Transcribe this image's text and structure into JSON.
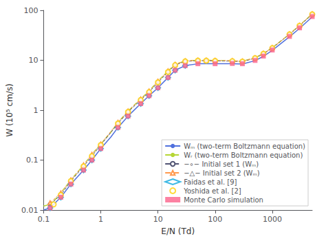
{
  "chart_data": {
    "type": "line",
    "xlabel": "E/N (Td)",
    "ylabel": "W (10⁵ cm/s)",
    "log": true,
    "grid": false,
    "legend": "lower right",
    "xlim": [
      0.1,
      5000
    ],
    "ylim": [
      0.01,
      100
    ],
    "xticks": [
      0.1,
      1,
      10,
      100,
      1000
    ],
    "yticks": [
      0.01,
      0.1,
      1,
      10,
      100
    ],
    "series": [
      {
        "name": "Wₘ (two-term Boltzmann equation)",
        "type": "line",
        "line_style": "solid",
        "x": [
          0.1,
          0.13,
          0.15,
          0.2,
          0.3,
          0.5,
          0.7,
          1.0,
          1.5,
          2.0,
          3.0,
          5.0,
          7.0,
          10.0,
          15.0,
          20.0,
          30.0,
          50.0,
          70.0,
          100.0,
          150.0,
          200.0,
          300.0,
          500.0,
          700.0,
          1000.0,
          2000.0,
          3000.0,
          5000.0
        ],
        "values": [
          0.01,
          0.011,
          0.013,
          0.018,
          0.033,
          0.063,
          0.1,
          0.17,
          0.29,
          0.45,
          0.76,
          1.35,
          1.95,
          2.8,
          4.5,
          6.3,
          7.8,
          8.5,
          8.55,
          8.5,
          8.5,
          8.5,
          8.4,
          9.8,
          12.0,
          15.8,
          29.5,
          43.5,
          74.0
        ]
      },
      {
        "name": "Wᵣ (two-term Boltzmann equation)",
        "type": "line",
        "line_style": "dashed",
        "x": [
          0.1,
          0.13,
          0.15,
          0.2,
          0.3,
          0.5,
          0.7,
          1.0,
          1.5,
          2.0,
          3.0,
          5.0,
          7.0,
          10.0,
          15.0,
          20.0,
          30.0,
          50.0,
          70.0,
          100.0,
          150.0,
          200.0,
          300.0,
          500.0,
          700.0,
          1000.0,
          2000.0,
          3000.0,
          5000.0
        ],
        "values": [
          0.012,
          0.013,
          0.015,
          0.022,
          0.04,
          0.08,
          0.13,
          0.21,
          0.36,
          0.57,
          0.96,
          1.68,
          2.42,
          3.8,
          6.1,
          8.3,
          9.7,
          10.0,
          10.0,
          9.9,
          9.8,
          9.7,
          9.6,
          11.2,
          13.7,
          17.8,
          33.5,
          50.0,
          85.0
        ]
      },
      {
        "name": "−∘− Initial set 1 (Wₘ)",
        "type": "line",
        "line_style": "dashed",
        "marker": "circle",
        "x": [
          0.13,
          0.2,
          0.3,
          0.5,
          0.7,
          1.0,
          2.0,
          3.0,
          5.0,
          7.0,
          10.0,
          15.0,
          20.0,
          30.0,
          50.0,
          70.0,
          100.0,
          200.0,
          300.0,
          500.0,
          700.0,
          1000.0,
          2000.0,
          3000.0,
          5000.0
        ],
        "values": [
          0.013,
          0.02,
          0.038,
          0.075,
          0.12,
          0.2,
          0.54,
          0.92,
          1.6,
          2.3,
          3.6,
          5.8,
          8.0,
          9.5,
          9.8,
          9.8,
          9.7,
          9.6,
          9.4,
          11.0,
          13.5,
          17.5,
          33.0,
          49.0,
          83.0
        ]
      },
      {
        "name": "−△− Initial set 2 (Wₘ)",
        "type": "line",
        "line_style": "dashed",
        "marker": "triangle",
        "x": [
          0.13,
          0.2,
          0.3,
          0.5,
          0.7,
          1.0,
          2.0,
          3.0,
          5.0,
          7.0,
          10.0,
          15.0,
          20.0,
          30.0,
          50.0,
          70.0,
          100.0,
          200.0,
          300.0,
          500.0,
          700.0,
          1000.0,
          2000.0,
          3000.0,
          5000.0
        ],
        "values": [
          0.014,
          0.022,
          0.04,
          0.08,
          0.13,
          0.21,
          0.57,
          0.96,
          1.68,
          2.42,
          3.8,
          6.1,
          8.3,
          9.7,
          10.0,
          10.0,
          9.9,
          9.8,
          9.6,
          11.2,
          13.7,
          17.8,
          33.5,
          50.0,
          85.0
        ]
      },
      {
        "name": "Faidas et al. [9]",
        "type": "scatter",
        "marker": "diamond",
        "x": [
          0.13,
          0.2,
          0.3,
          0.5,
          0.7,
          1.0,
          2.0,
          3.0,
          5.0,
          7.0,
          10.0,
          15.0,
          20.0,
          30.0
        ],
        "values": [
          0.011,
          0.018,
          0.033,
          0.063,
          0.1,
          0.17,
          0.45,
          0.76,
          1.35,
          1.95,
          2.8,
          4.5,
          6.3,
          7.8
        ]
      },
      {
        "name": "Yoshida et al. [2]",
        "type": "scatter",
        "marker": "circle",
        "x": [
          0.15,
          0.2,
          0.3,
          0.5,
          0.7,
          1.0,
          2.0,
          3.0,
          5.0,
          7.0,
          10.0,
          15.0,
          20.0,
          30.0,
          50.0,
          70.0,
          100.0,
          200.0,
          300.0,
          500.0,
          700.0,
          1000.0,
          2000.0,
          3000.0,
          5000.0
        ],
        "values": [
          0.013,
          0.02,
          0.038,
          0.075,
          0.12,
          0.2,
          0.54,
          0.92,
          1.6,
          2.3,
          3.6,
          5.8,
          8.0,
          9.5,
          9.8,
          9.8,
          9.7,
          9.6,
          9.4,
          11.0,
          13.5,
          17.5,
          33.0,
          49.0,
          83.0
        ]
      },
      {
        "name": "Monte Carlo simulation",
        "type": "scatter",
        "marker": "square",
        "x": [
          0.13,
          0.2,
          0.3,
          0.5,
          0.7,
          1.0,
          2.0,
          3.0,
          5.0,
          7.0,
          10.0,
          15.0,
          20.0,
          30.0,
          50.0,
          100.0,
          200.0,
          300.0,
          500.0,
          700.0,
          1000.0,
          2000.0,
          3000.0,
          5000.0
        ],
        "values": [
          0.011,
          0.018,
          0.033,
          0.063,
          0.1,
          0.17,
          0.45,
          0.76,
          1.35,
          1.95,
          2.8,
          4.5,
          6.3,
          7.8,
          8.5,
          8.5,
          8.6,
          8.5,
          9.9,
          12.1,
          16.0,
          30.0,
          44.5,
          75.0
        ]
      }
    ]
  }
}
